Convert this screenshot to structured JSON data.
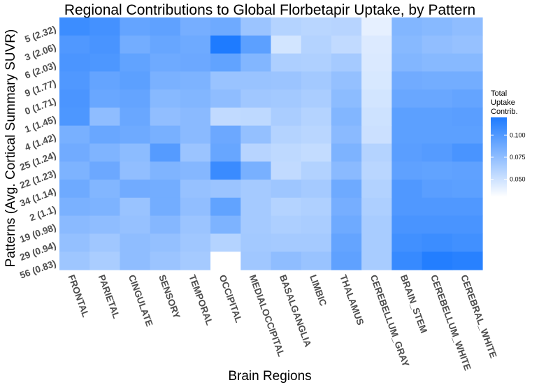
{
  "chart_data": {
    "type": "heatmap",
    "title": "Regional Contributions to Global Florbetapir Uptake, by Pattern",
    "xlabel": "Brain Regions",
    "ylabel": "Patterns (Avg. Cortical Summary SUVR)",
    "x_categories": [
      "FRONTAL",
      "PARIETAL",
      "CINGULATE",
      "SENSORY",
      "TEMPORAL",
      "OCCIPITAL",
      "MEDIALOCCIPITAL",
      "BASALGANGLIA",
      "LIMBIC",
      "THALAMUS",
      "CEREBELLUM_GRAY",
      "BRAIN_STEM",
      "CEREBELLUM_WHITE",
      "CEREBRAL_WHITE"
    ],
    "y_categories": [
      "5 (2.32)",
      "3 (2.06)",
      "6 (2.03)",
      "9 (1.77)",
      "0 (1.71)",
      "1 (1.45)",
      "4 (1.42)",
      "25 (1.24)",
      "22 (1.23)",
      "34 (1.14)",
      "2 (1.1)",
      "19 (0.98)",
      "29 (0.94)",
      "56 (0.83)"
    ],
    "values": [
      [
        0.108,
        0.105,
        0.092,
        0.094,
        0.085,
        0.088,
        0.07,
        0.06,
        0.058,
        0.059,
        0.04,
        0.08,
        0.078,
        0.075
      ],
      [
        0.1,
        0.103,
        0.086,
        0.091,
        0.088,
        0.12,
        0.095,
        0.048,
        0.06,
        0.055,
        0.044,
        0.078,
        0.074,
        0.072
      ],
      [
        0.102,
        0.101,
        0.093,
        0.088,
        0.089,
        0.093,
        0.08,
        0.063,
        0.062,
        0.066,
        0.045,
        0.08,
        0.078,
        0.078
      ],
      [
        0.1,
        0.092,
        0.095,
        0.083,
        0.082,
        0.071,
        0.071,
        0.07,
        0.067,
        0.073,
        0.046,
        0.087,
        0.086,
        0.086
      ],
      [
        0.102,
        0.09,
        0.092,
        0.078,
        0.08,
        0.075,
        0.068,
        0.067,
        0.064,
        0.076,
        0.048,
        0.09,
        0.09,
        0.092
      ],
      [
        0.101,
        0.075,
        0.09,
        0.074,
        0.077,
        0.055,
        0.056,
        0.064,
        0.06,
        0.08,
        0.05,
        0.095,
        0.095,
        0.096
      ],
      [
        0.084,
        0.09,
        0.088,
        0.084,
        0.077,
        0.089,
        0.073,
        0.06,
        0.058,
        0.077,
        0.051,
        0.095,
        0.095,
        0.095
      ],
      [
        0.087,
        0.081,
        0.076,
        0.098,
        0.07,
        0.091,
        0.059,
        0.056,
        0.054,
        0.082,
        0.06,
        0.096,
        0.098,
        0.103
      ],
      [
        0.082,
        0.089,
        0.074,
        0.081,
        0.079,
        0.109,
        0.084,
        0.055,
        0.061,
        0.077,
        0.058,
        0.094,
        0.093,
        0.094
      ],
      [
        0.088,
        0.08,
        0.087,
        0.086,
        0.072,
        0.07,
        0.066,
        0.069,
        0.066,
        0.088,
        0.061,
        0.1,
        0.096,
        0.095
      ],
      [
        0.083,
        0.082,
        0.071,
        0.086,
        0.074,
        0.093,
        0.066,
        0.06,
        0.062,
        0.085,
        0.063,
        0.1,
        0.1,
        0.1
      ],
      [
        0.077,
        0.075,
        0.072,
        0.079,
        0.07,
        0.082,
        0.066,
        0.063,
        0.064,
        0.088,
        0.065,
        0.103,
        0.103,
        0.103
      ],
      [
        0.073,
        0.068,
        0.075,
        0.073,
        0.068,
        0.06,
        0.067,
        0.066,
        0.066,
        0.092,
        0.065,
        0.106,
        0.108,
        0.106
      ],
      [
        0.069,
        0.064,
        0.075,
        0.07,
        0.066,
        0.03,
        0.068,
        0.075,
        0.071,
        0.094,
        0.065,
        0.11,
        0.118,
        0.116
      ]
    ],
    "color_low": "#ffffff",
    "color_high": "#1e7bff",
    "value_range": [
      0.03,
      0.12
    ],
    "legend": {
      "title_lines": [
        "Total",
        "Uptake",
        "Contrib."
      ],
      "ticks": [
        0.05,
        0.075,
        0.1
      ],
      "tick_labels": [
        "0.050",
        "0.075",
        "0.100"
      ],
      "placement": "right"
    },
    "grid": false
  }
}
